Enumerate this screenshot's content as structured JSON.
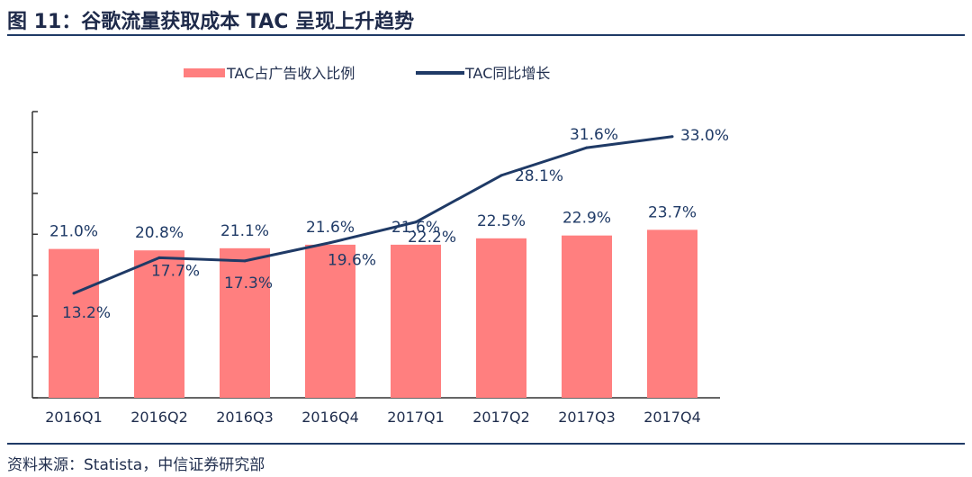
{
  "header": {
    "title": "图 11：谷歌流量获取成本 TAC 呈现上升趋势"
  },
  "footer": {
    "source": "资料来源：Statista，中信证券研究部"
  },
  "chart_data": {
    "type": "bar",
    "categories": [
      "2016Q1",
      "2016Q2",
      "2016Q3",
      "2016Q4",
      "2017Q1",
      "2017Q2",
      "2017Q3",
      "2017Q4"
    ],
    "series": [
      {
        "name": "TAC占广告收入比例",
        "type": "bar",
        "color": "#ff7f7f",
        "values": [
          21.0,
          20.8,
          21.1,
          21.6,
          21.6,
          22.5,
          22.9,
          23.7
        ],
        "labels": [
          "21.0%",
          "20.8%",
          "21.1%",
          "21.6%",
          "21.6%",
          "22.5%",
          "22.9%",
          "23.7%"
        ]
      },
      {
        "name": "TAC同比增长",
        "type": "line",
        "color": "#1f3a66",
        "values": [
          13.2,
          17.7,
          17.3,
          19.6,
          22.2,
          28.1,
          31.6,
          33.0
        ],
        "labels": [
          "13.2%",
          "17.7%",
          "17.3%",
          "19.6%",
          "22.2%",
          "28.1%",
          "31.6%",
          "33.0%"
        ]
      }
    ],
    "legend_position": "top",
    "grid": false
  }
}
